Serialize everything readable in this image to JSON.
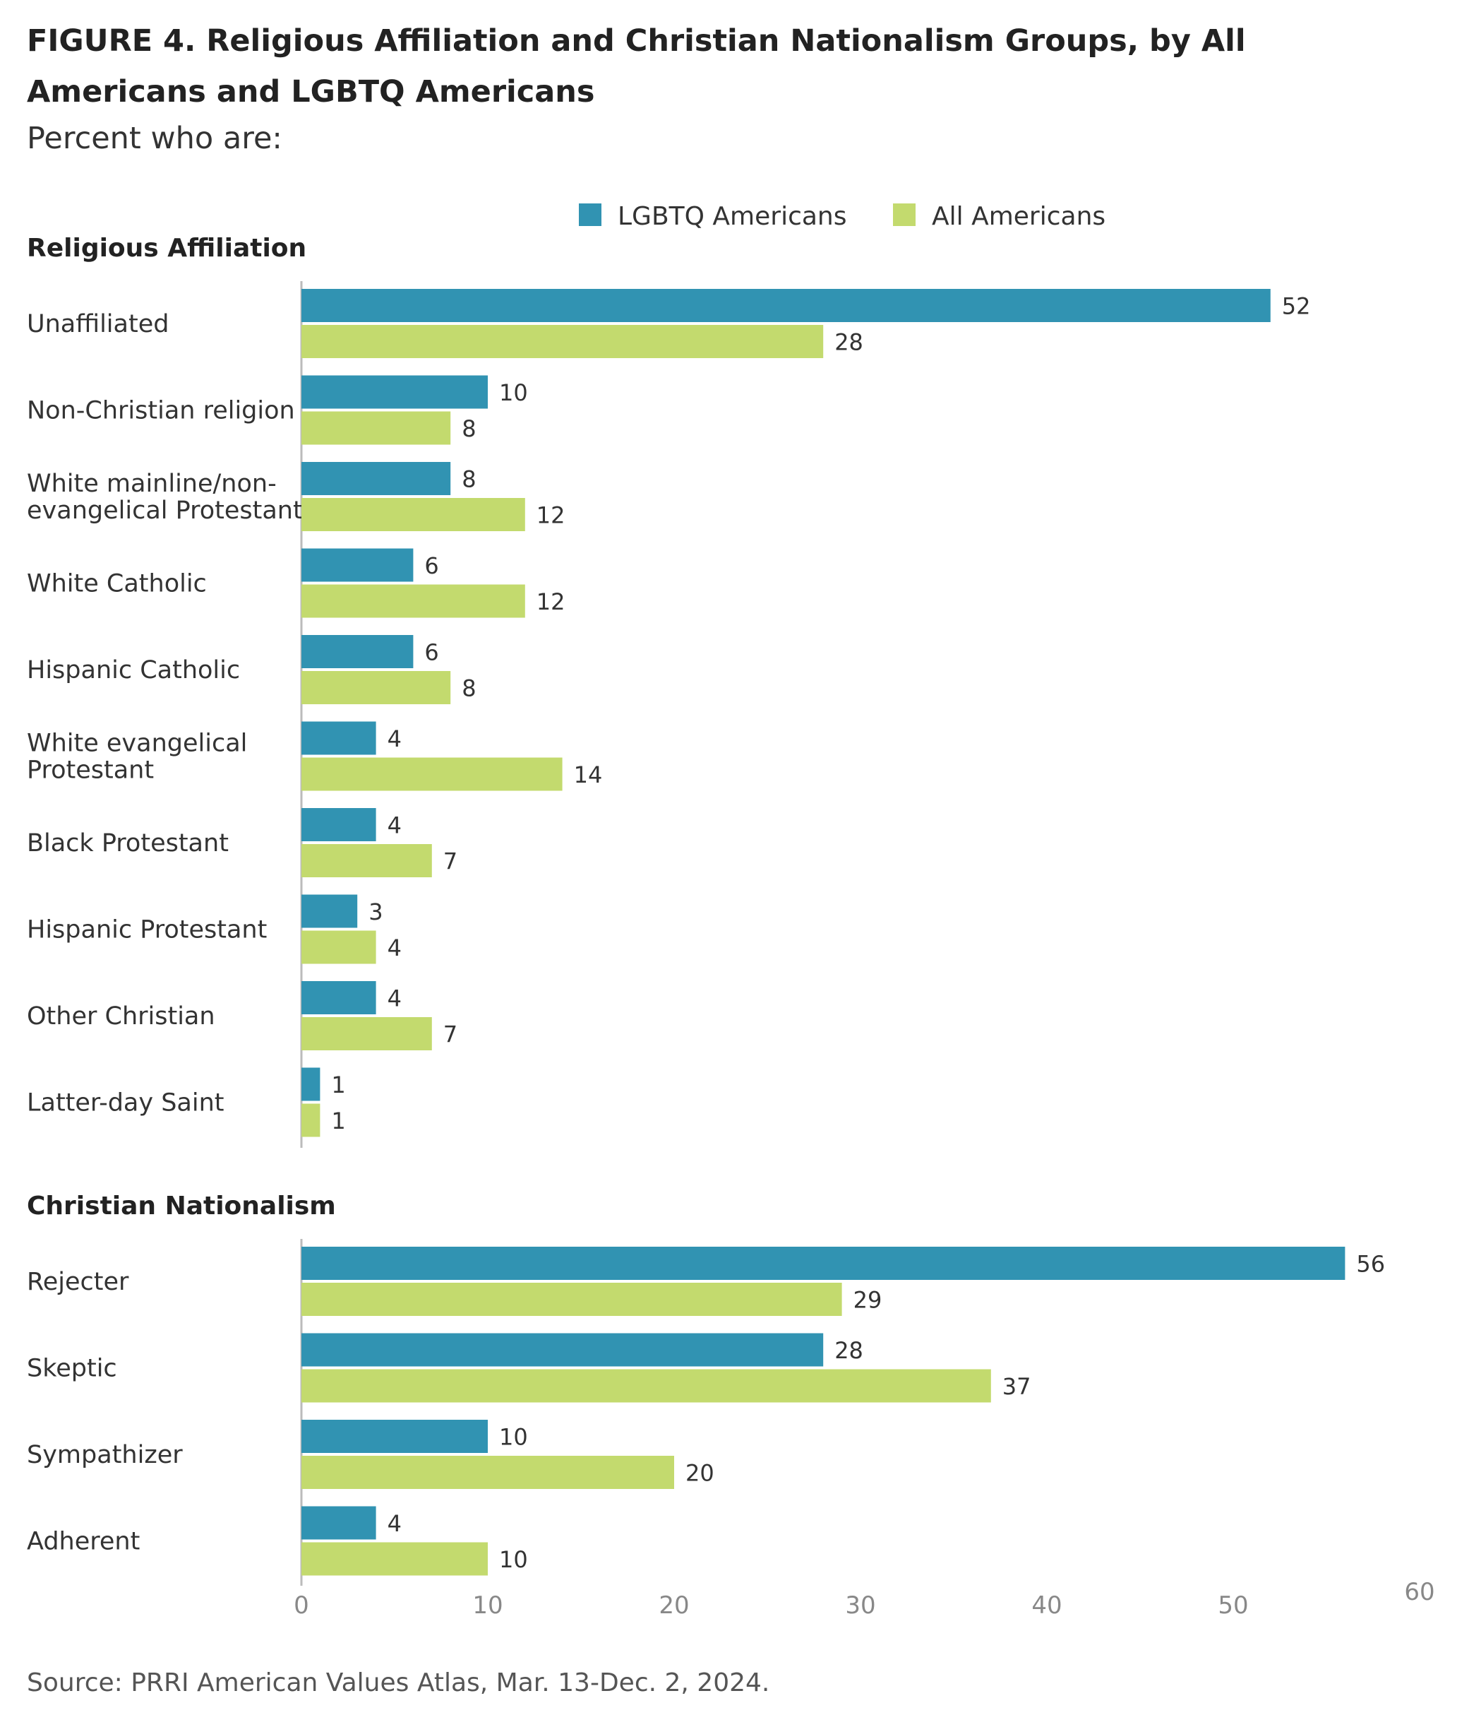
{
  "title": "FIGURE 4. Religious Affiliation and Christian Nationalism Groups, by All Americans and LGBTQ Americans",
  "subtitle": "Percent who are:",
  "source": "Source: PRRI American Values Atlas, Mar. 13-Dec. 2, 2024.",
  "colors": {
    "lgbtq": "#3193b2",
    "all": "#c3da6e",
    "axis": "#bbbbbb",
    "tick": "#888888"
  },
  "chart_data": {
    "type": "bar",
    "orientation": "horizontal",
    "xlim": [
      0,
      60
    ],
    "xticks": [
      0,
      10,
      20,
      30,
      40,
      50,
      60
    ],
    "legend": {
      "position": "top",
      "entries": [
        "LGBTQ Americans",
        "All Americans"
      ]
    },
    "series_names": [
      "LGBTQ Americans",
      "All Americans"
    ],
    "groups": [
      {
        "name": "Religious Affiliation",
        "categories": [
          [
            "Unaffiliated"
          ],
          [
            "Non-Christian religion"
          ],
          [
            "White mainline/non-",
            "evangelical Protestant"
          ],
          [
            "White Catholic"
          ],
          [
            "Hispanic Catholic"
          ],
          [
            "White evangelical",
            "Protestant"
          ],
          [
            "Black Protestant"
          ],
          [
            "Hispanic Protestant"
          ],
          [
            "Other Christian"
          ],
          [
            "Latter-day Saint"
          ]
        ],
        "lgbtq": [
          52,
          10,
          8,
          6,
          6,
          4,
          4,
          3,
          4,
          1
        ],
        "all": [
          28,
          8,
          12,
          12,
          8,
          14,
          7,
          4,
          7,
          1
        ]
      },
      {
        "name": "Christian Nationalism",
        "categories": [
          [
            "Rejecter"
          ],
          [
            "Skeptic"
          ],
          [
            "Sympathizer"
          ],
          [
            "Adherent"
          ]
        ],
        "lgbtq": [
          56,
          28,
          10,
          4
        ],
        "all": [
          29,
          37,
          20,
          10
        ]
      }
    ]
  }
}
